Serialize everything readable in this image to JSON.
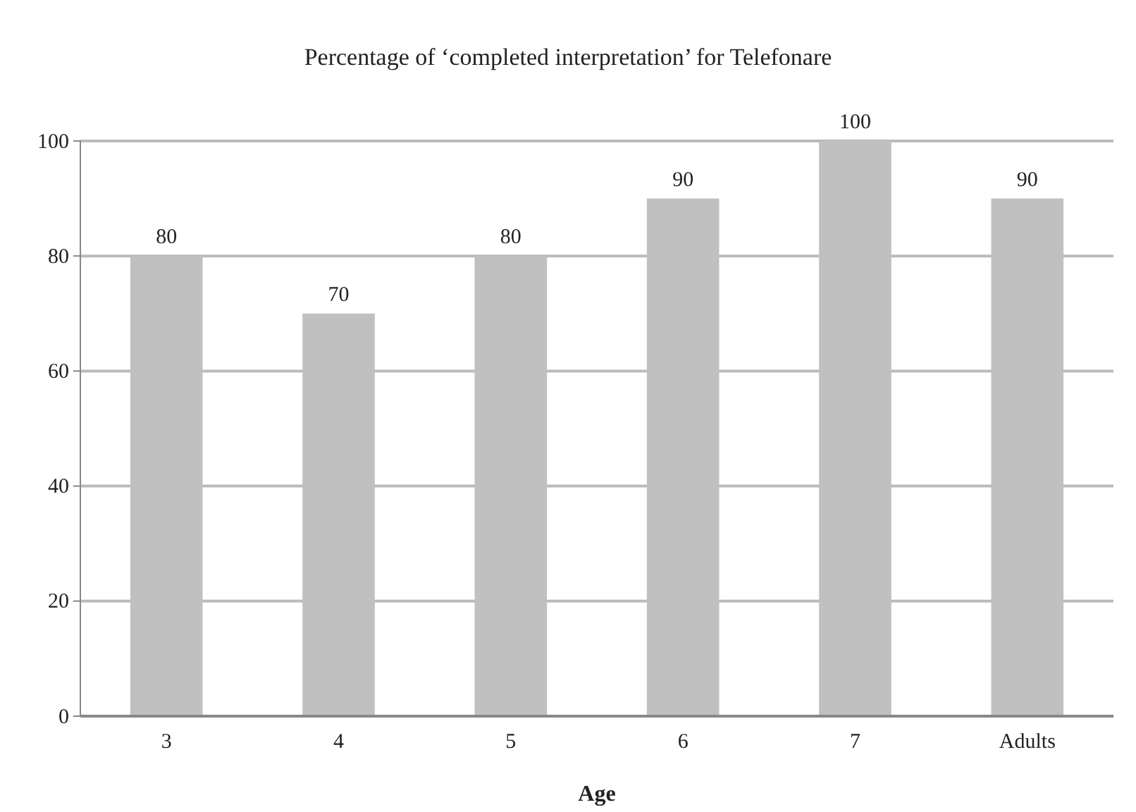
{
  "chart_data": {
    "type": "bar",
    "title": "Percentage of ‘completed interpretation’ for Telefonare",
    "xlabel": "Age",
    "categories": [
      "3",
      "4",
      "5",
      "6",
      "7",
      "Adults"
    ],
    "values": [
      80,
      70,
      80,
      90,
      100,
      90
    ],
    "color": "#c0c0c0",
    "ylim": [
      0,
      100
    ],
    "yticks": [
      0,
      20,
      40,
      60,
      80,
      100
    ],
    "grid": "y",
    "data_labels": true
  }
}
